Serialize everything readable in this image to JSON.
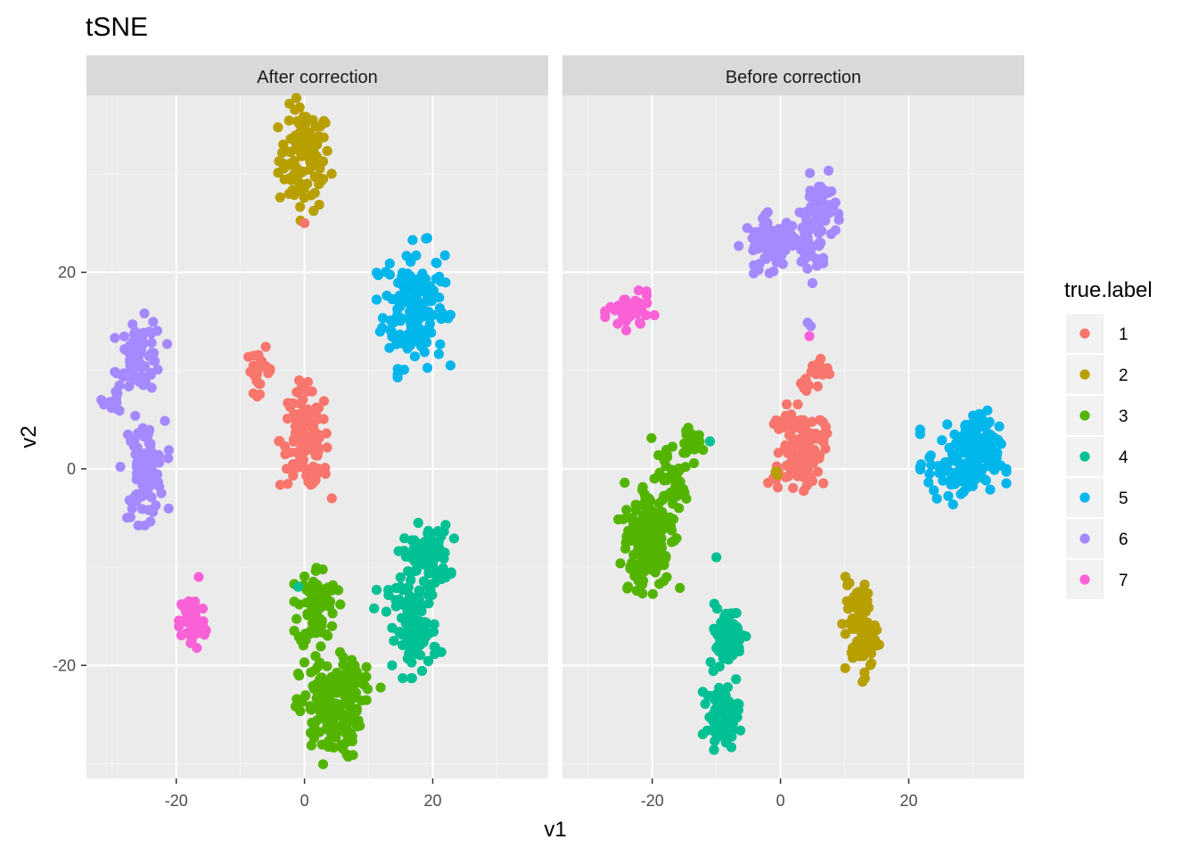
{
  "chart_data": {
    "type": "scatter",
    "title": "tSNE",
    "xlabel": "v1",
    "ylabel": "v2",
    "xlim": [
      -34,
      38
    ],
    "ylim": [
      -31.5,
      38
    ],
    "x_ticks": [
      -20,
      0,
      20
    ],
    "x_tick_labels": [
      "-20",
      "0",
      "20"
    ],
    "y_ticks": [
      -20,
      0,
      20
    ],
    "y_tick_labels": [
      "-20",
      "0",
      "20"
    ],
    "grid": true,
    "legend": {
      "title": "true.label",
      "placement": "right",
      "entries": [
        {
          "label": "1",
          "color": "#F8766D"
        },
        {
          "label": "2",
          "color": "#B79F00"
        },
        {
          "label": "3",
          "color": "#53B400"
        },
        {
          "label": "4",
          "color": "#00C094"
        },
        {
          "label": "5",
          "color": "#00B6EB"
        },
        {
          "label": "6",
          "color": "#A58AFF"
        },
        {
          "label": "7",
          "color": "#FB61D7"
        }
      ]
    },
    "facets": [
      {
        "label": "After correction",
        "clusters": [
          {
            "label": "2",
            "cx": 0,
            "cy": 31.5,
            "sx": 2.0,
            "sy": 2.6,
            "n": 110
          },
          {
            "label": "1",
            "cx": 0,
            "cy": 25,
            "sx": 0,
            "sy": 0,
            "n": 1
          },
          {
            "label": "5",
            "cx": 17,
            "cy": 16.5,
            "sx": 2.4,
            "sy": 3.0,
            "n": 160
          },
          {
            "label": "1",
            "cx": -7,
            "cy": 10,
            "sx": 1.0,
            "sy": 1.1,
            "n": 25
          },
          {
            "label": "1",
            "cx": 0,
            "cy": 3,
            "sx": 1.9,
            "sy": 2.5,
            "n": 110
          },
          {
            "label": "1",
            "cx": 1.8,
            "cy": -0.2,
            "sx": 1.0,
            "sy": 0.2,
            "n": 12
          },
          {
            "label": "6",
            "cx": -25.5,
            "cy": 11.5,
            "sx": 1.7,
            "sy": 1.8,
            "n": 65
          },
          {
            "label": "6",
            "cx": -29,
            "cy": 7.2,
            "sx": 1.2,
            "sy": 0.9,
            "n": 12
          },
          {
            "label": "6",
            "cx": -25,
            "cy": 0,
            "sx": 1.6,
            "sy": 2.4,
            "n": 95
          },
          {
            "label": "7",
            "cx": -17.5,
            "cy": -15.5,
            "sx": 1.0,
            "sy": 1.5,
            "n": 55
          },
          {
            "label": "7",
            "cx": -16.5,
            "cy": -11,
            "sx": 0,
            "sy": 0,
            "n": 1
          },
          {
            "label": "3",
            "cx": 2,
            "cy": -14,
            "sx": 1.5,
            "sy": 2.1,
            "n": 80
          },
          {
            "label": "3",
            "cx": 4,
            "cy": -24.5,
            "sx": 2.4,
            "sy": 2.5,
            "n": 160
          },
          {
            "label": "3",
            "cx": 8,
            "cy": -21.5,
            "sx": 1.7,
            "sy": 0.8,
            "n": 20
          },
          {
            "label": "4",
            "cx": 19,
            "cy": -9,
            "sx": 1.8,
            "sy": 1.6,
            "n": 95
          },
          {
            "label": "4",
            "cx": 17.5,
            "cy": -16.5,
            "sx": 1.6,
            "sy": 2.0,
            "n": 90
          },
          {
            "label": "4",
            "cx": 13,
            "cy": -13,
            "sx": 1.0,
            "sy": 0.7,
            "n": 8
          },
          {
            "label": "4",
            "cx": -1,
            "cy": -12,
            "sx": 0,
            "sy": 0,
            "n": 1
          }
        ]
      },
      {
        "label": "Before correction",
        "clusters": [
          {
            "label": "6",
            "cx": -1.5,
            "cy": 23,
            "sx": 2.1,
            "sy": 1.3,
            "n": 80
          },
          {
            "label": "6",
            "cx": 6,
            "cy": 26.5,
            "sx": 1.3,
            "sy": 1.6,
            "n": 55
          },
          {
            "label": "6",
            "cx": 4.5,
            "cy": 22.5,
            "sx": 1.3,
            "sy": 1.5,
            "n": 35
          },
          {
            "label": "6",
            "cx": 4.5,
            "cy": 15,
            "sx": 0.2,
            "sy": 0.2,
            "n": 2
          },
          {
            "label": "7",
            "cx": 4.5,
            "cy": 13.5,
            "sx": 0,
            "sy": 0,
            "n": 1
          },
          {
            "label": "7",
            "cx": -23.5,
            "cy": 16,
            "sx": 1.6,
            "sy": 0.9,
            "n": 55
          },
          {
            "label": "1",
            "cx": 6,
            "cy": 10,
            "sx": 0.9,
            "sy": 0.5,
            "n": 18
          },
          {
            "label": "1",
            "cx": 4,
            "cy": 8.5,
            "sx": 0.8,
            "sy": 0.6,
            "n": 10
          },
          {
            "label": "1",
            "cx": 3.5,
            "cy": 2,
            "sx": 1.7,
            "sy": 1.9,
            "n": 110
          },
          {
            "label": "1",
            "cx": 0,
            "cy": 4.5,
            "sx": 1.2,
            "sy": 0.3,
            "n": 12
          },
          {
            "label": "1",
            "cx": -0.5,
            "cy": -0.5,
            "sx": 0.6,
            "sy": 0.6,
            "n": 6
          },
          {
            "label": "2",
            "cx": -1,
            "cy": -0.2,
            "sx": 0.3,
            "sy": 0.2,
            "n": 3
          },
          {
            "label": "5",
            "cx": 28.5,
            "cy": 0.5,
            "sx": 2.8,
            "sy": 1.9,
            "n": 140
          },
          {
            "label": "5",
            "cx": 31,
            "cy": 3.5,
            "sx": 1.3,
            "sy": 1.3,
            "n": 40
          },
          {
            "label": "3",
            "cx": -20.5,
            "cy": -6.5,
            "sx": 2.0,
            "sy": 2.6,
            "n": 130
          },
          {
            "label": "3",
            "cx": -17,
            "cy": -1.5,
            "sx": 1.3,
            "sy": 2.2,
            "n": 45
          },
          {
            "label": "3",
            "cx": -14,
            "cy": 3,
            "sx": 0.8,
            "sy": 1.3,
            "n": 20
          },
          {
            "label": "3",
            "cx": -21.5,
            "cy": -10,
            "sx": 1.5,
            "sy": 1.0,
            "n": 30
          },
          {
            "label": "4",
            "cx": -11,
            "cy": 2.8,
            "sx": 0,
            "sy": 0,
            "n": 1
          },
          {
            "label": "4",
            "cx": -10,
            "cy": -9,
            "sx": 0,
            "sy": 0,
            "n": 1
          },
          {
            "label": "4",
            "cx": -8.5,
            "cy": -17,
            "sx": 1.3,
            "sy": 1.5,
            "n": 70
          },
          {
            "label": "4",
            "cx": -9,
            "cy": -25,
            "sx": 1.3,
            "sy": 1.5,
            "n": 70
          },
          {
            "label": "2",
            "cx": 12.5,
            "cy": -16.5,
            "sx": 1.2,
            "sy": 2.3,
            "n": 90
          },
          {
            "label": "2",
            "cx": 10.5,
            "cy": -11.5,
            "sx": 0.3,
            "sy": 0.4,
            "n": 3
          }
        ]
      }
    ]
  }
}
